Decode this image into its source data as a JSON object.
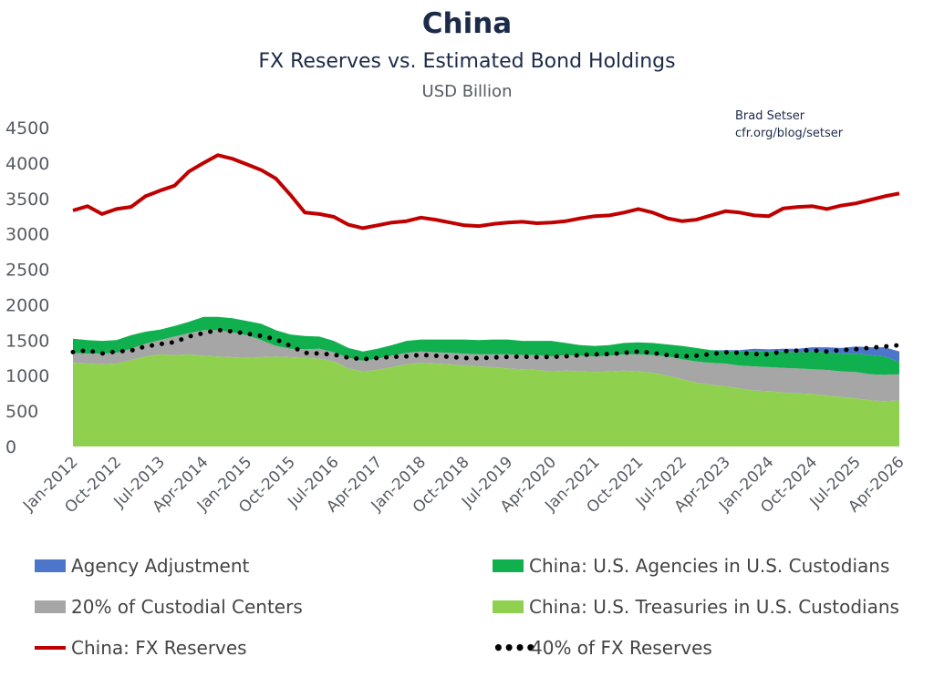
{
  "chart_data": {
    "type": "area",
    "title": "China",
    "subtitle": "FX Reserves vs. Estimated Bond Holdings",
    "units": "USD Billion",
    "credit": [
      "Brad Setser",
      "cfr.org/blog/setser"
    ],
    "ylim": [
      0,
      4500
    ],
    "yticks": [
      "0",
      "500",
      "1000",
      "1500",
      "2000",
      "2500",
      "3000",
      "3500",
      "4000",
      "4500"
    ],
    "xlabels": [
      "Jan-2012",
      "Oct-2012",
      "Jul-2013",
      "Apr-2014",
      "Jan-2015",
      "Oct-2015",
      "Jul-2016",
      "Apr-2017",
      "Jan-2018",
      "Oct-2018",
      "Jul-2019",
      "Apr-2020",
      "Jan-2021",
      "Oct-2021",
      "Jul-2022",
      "Apr-2023",
      "Jan-2024",
      "Oct-2024",
      "Jul-2025",
      "Apr-2026"
    ],
    "x": [
      "Jan-2012",
      "Apr-2012",
      "Jul-2012",
      "Oct-2012",
      "Jan-2013",
      "Apr-2013",
      "Jul-2013",
      "Oct-2013",
      "Jan-2014",
      "Apr-2014",
      "Jul-2014",
      "Oct-2014",
      "Jan-2015",
      "Apr-2015",
      "Jul-2015",
      "Oct-2015",
      "Jan-2016",
      "Apr-2016",
      "Jul-2016",
      "Oct-2016",
      "Jan-2017",
      "Apr-2017",
      "Jul-2017",
      "Oct-2017",
      "Jan-2018",
      "Apr-2018",
      "Jul-2018",
      "Oct-2018",
      "Jan-2019",
      "Apr-2019",
      "Jul-2019",
      "Oct-2019",
      "Jan-2020",
      "Apr-2020",
      "Jul-2020",
      "Oct-2020",
      "Jan-2021",
      "Apr-2021",
      "Jul-2021",
      "Oct-2021",
      "Jan-2022",
      "Apr-2022",
      "Jul-2022",
      "Oct-2022",
      "Jan-2023",
      "Apr-2023",
      "Jul-2023",
      "Oct-2023",
      "Jan-2024",
      "Apr-2024",
      "Jul-2024",
      "Oct-2024",
      "Jan-2025",
      "Apr-2025",
      "Jul-2025",
      "Oct-2025",
      "Jan-2026",
      "Apr-2026"
    ],
    "series": [
      {
        "name": "China: U.S. Treasuries in U.S. Custodians",
        "kind": "stack",
        "color": "#8fd14f",
        "values": [
          1180,
          1170,
          1160,
          1170,
          1220,
          1270,
          1300,
          1290,
          1300,
          1280,
          1270,
          1260,
          1250,
          1260,
          1270,
          1260,
          1250,
          1240,
          1200,
          1100,
          1060,
          1080,
          1120,
          1160,
          1180,
          1170,
          1160,
          1140,
          1130,
          1120,
          1100,
          1090,
          1080,
          1060,
          1070,
          1060,
          1050,
          1060,
          1070,
          1060,
          1040,
          1000,
          950,
          900,
          870,
          850,
          820,
          790,
          780,
          760,
          750,
          740,
          720,
          700,
          680,
          650,
          640,
          650
        ]
      },
      {
        "name": "20% of Custodial Centers",
        "kind": "stack",
        "color": "#a6a6a6",
        "values": [
          140,
          140,
          150,
          150,
          160,
          180,
          200,
          260,
          300,
          360,
          370,
          350,
          320,
          240,
          150,
          120,
          120,
          140,
          130,
          150,
          150,
          160,
          160,
          160,
          160,
          160,
          160,
          170,
          170,
          180,
          200,
          200,
          210,
          210,
          220,
          220,
          220,
          220,
          230,
          240,
          250,
          270,
          280,
          300,
          310,
          320,
          320,
          340,
          340,
          350,
          350,
          350,
          360,
          360,
          370,
          370,
          370,
          370
        ]
      },
      {
        "name": "China: U.S. Agencies in U.S. Custodians",
        "kind": "stack",
        "color": "#11b04f",
        "values": [
          200,
          190,
          180,
          180,
          190,
          170,
          150,
          150,
          160,
          190,
          190,
          200,
          200,
          230,
          220,
          200,
          190,
          170,
          160,
          140,
          130,
          140,
          150,
          170,
          170,
          180,
          190,
          200,
          200,
          210,
          210,
          200,
          200,
          220,
          170,
          150,
          150,
          150,
          160,
          170,
          170,
          170,
          190,
          190,
          180,
          180,
          200,
          220,
          220,
          230,
          230,
          250,
          250,
          250,
          260,
          270,
          260,
          170
        ]
      },
      {
        "name": "Agency Adjustment",
        "kind": "stack",
        "color": "#4b76c9",
        "values": [
          0,
          0,
          0,
          0,
          0,
          0,
          0,
          0,
          0,
          0,
          0,
          0,
          0,
          0,
          0,
          0,
          0,
          0,
          0,
          0,
          0,
          0,
          0,
          0,
          0,
          0,
          0,
          0,
          0,
          0,
          0,
          0,
          0,
          0,
          0,
          0,
          0,
          0,
          0,
          0,
          0,
          0,
          0,
          0,
          0,
          10,
          20,
          30,
          30,
          40,
          50,
          60,
          70,
          80,
          100,
          110,
          130,
          150
        ]
      },
      {
        "name": "China: FX Reserves",
        "kind": "line",
        "color": "#c00000",
        "values": [
          3330,
          3390,
          3280,
          3350,
          3380,
          3530,
          3610,
          3680,
          3880,
          4000,
          4110,
          4060,
          3980,
          3900,
          3780,
          3550,
          3300,
          3280,
          3240,
          3130,
          3080,
          3120,
          3160,
          3180,
          3230,
          3200,
          3160,
          3120,
          3110,
          3140,
          3160,
          3170,
          3150,
          3160,
          3180,
          3220,
          3250,
          3260,
          3300,
          3350,
          3300,
          3220,
          3180,
          3200,
          3260,
          3320,
          3300,
          3260,
          3250,
          3360,
          3380,
          3390,
          3350,
          3400,
          3430,
          3480,
          3530,
          3570
        ]
      },
      {
        "name": "40% of FX Reserves",
        "kind": "dots",
        "color": "#000000",
        "values": [
          1332,
          1356,
          1312,
          1340,
          1352,
          1412,
          1444,
          1472,
          1552,
          1600,
          1644,
          1624,
          1592,
          1560,
          1512,
          1420,
          1320,
          1312,
          1296,
          1252,
          1232,
          1248,
          1264,
          1272,
          1292,
          1280,
          1264,
          1248,
          1244,
          1256,
          1264,
          1268,
          1260,
          1264,
          1272,
          1288,
          1300,
          1304,
          1320,
          1340,
          1320,
          1288,
          1272,
          1280,
          1304,
          1328,
          1320,
          1304,
          1300,
          1344,
          1352,
          1356,
          1340,
          1360,
          1372,
          1392,
          1412,
          1428
        ]
      }
    ],
    "legend": [
      "Agency Adjustment",
      "China: U.S. Agencies in U.S. Custodians",
      "20% of Custodial Centers",
      "China: U.S. Treasuries in U.S. Custodians",
      "China: FX Reserves",
      "40% of FX Reserves"
    ],
    "legend_position": "bottom",
    "grid": false
  }
}
